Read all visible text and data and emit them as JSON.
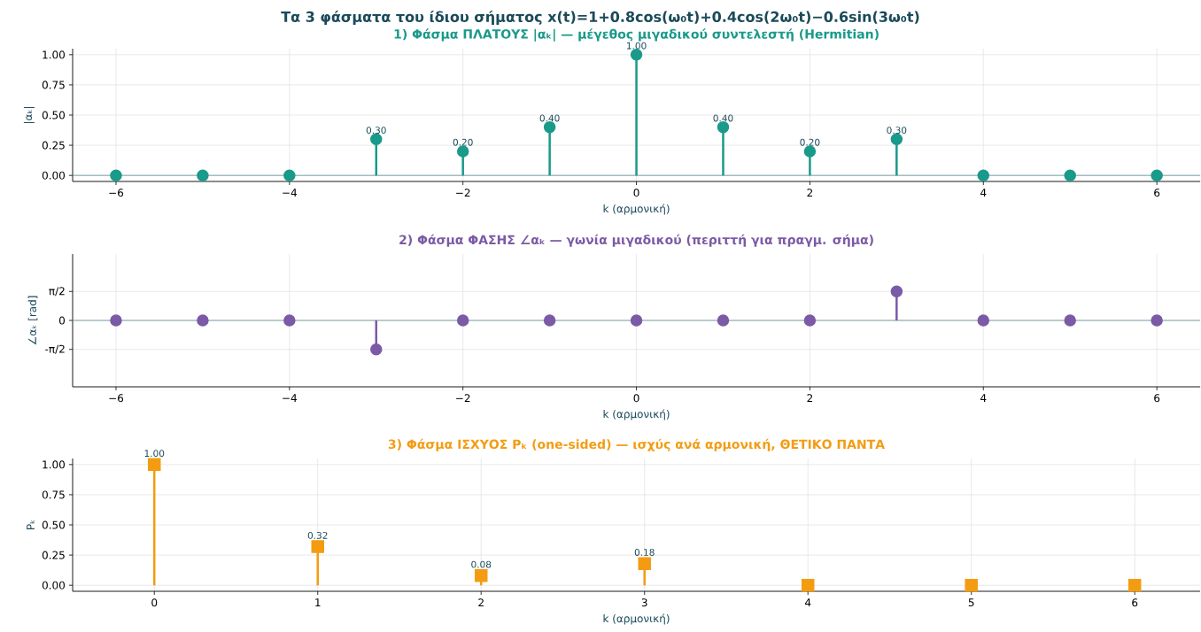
{
  "chart_data": [
    {
      "type": "lollipop",
      "title": "Τα 3 φάσματα του ίδιου σήματος x(t)=1+0.8cos(ω₀t)+0.4cos(2ω₀t)−0.6sin(3ω₀t)",
      "subtitle": "1) Φάσμα ΠΛΑΤΟΥΣ |αₖ| — μέγεθος μιγαδικού συντελεστή (Hermitian)",
      "xlabel": "k (αρμονική)",
      "ylabel": "|αₖ|",
      "x": [
        -6,
        -5,
        -4,
        -3,
        -2,
        -1,
        0,
        1,
        2,
        3,
        4,
        5,
        6
      ],
      "values": [
        0,
        0,
        0,
        0.3,
        0.2,
        0.4,
        1.0,
        0.4,
        0.2,
        0.3,
        0,
        0,
        0
      ],
      "value_labels": [
        null,
        null,
        null,
        "0.30",
        "0.20",
        "0.40",
        "1.00",
        "0.40",
        "0.20",
        "0.30",
        null,
        null,
        null
      ],
      "color": "#1a9a8a",
      "marker": "circle",
      "grid": true,
      "xlim": [
        -6.5,
        6.5
      ],
      "xticks": [
        {
          "value": -6,
          "label": "−6"
        },
        {
          "value": -4,
          "label": "−4"
        },
        {
          "value": -2,
          "label": "−2"
        },
        0,
        2,
        4,
        6
      ],
      "ylim": [
        -0.05,
        1.05
      ],
      "yticks": [
        {
          "value": 0,
          "label": "0.00"
        },
        {
          "value": 0.25,
          "label": "0.25"
        },
        {
          "value": 0.5,
          "label": "0.50"
        },
        {
          "value": 0.75,
          "label": "0.75"
        },
        {
          "value": 1,
          "label": "1.00"
        }
      ],
      "ref_lines": [
        {
          "axis": "y",
          "value": 0,
          "color": "#7fa3a8"
        }
      ]
    },
    {
      "type": "lollipop",
      "title": "2) Φάσμα ΦΑΣΗΣ ∠αₖ — γωνία μιγαδικού (περιττή για πραγμ. σήμα)",
      "xlabel": "k (αρμονική)",
      "ylabel": "∠αₖ [rad]",
      "x": [
        -6,
        -5,
        -4,
        -3,
        -2,
        -1,
        0,
        1,
        2,
        3,
        4,
        5,
        6
      ],
      "values": [
        0,
        0,
        0,
        -1.57,
        0,
        0,
        0,
        0,
        0,
        1.57,
        0,
        0,
        0
      ],
      "color": "#7b5aa6",
      "marker": "circle",
      "grid": true,
      "xlim": [
        -6.5,
        6.5
      ],
      "xticks": [
        {
          "value": -6,
          "label": "−6"
        },
        {
          "value": -4,
          "label": "−4"
        },
        {
          "value": -2,
          "label": "−2"
        },
        0,
        2,
        4,
        6
      ],
      "ylim": [
        -3.6,
        3.6
      ],
      "yticks": [
        {
          "value": -1.5708,
          "label": "-π/2"
        },
        0,
        {
          "value": 1.5708,
          "label": "π/2"
        }
      ],
      "ref_lines": [
        {
          "axis": "y",
          "value": 0,
          "color": "#7fa3a8"
        }
      ]
    },
    {
      "type": "lollipop",
      "title": "3) Φάσμα ΙΣΧΥΟΣ Pₖ (one-sided) — ισχύς ανά αρμονική, ΘΕΤΙΚΟ ΠΑΝΤΑ",
      "xlabel": "k (αρμονική)",
      "ylabel": "Pₖ",
      "x": [
        0,
        1,
        2,
        3,
        4,
        5,
        6
      ],
      "values": [
        1.0,
        0.32,
        0.08,
        0.18,
        0,
        0,
        0
      ],
      "value_labels": [
        "1.00",
        "0.32",
        "0.08",
        "0.18",
        null,
        null,
        null
      ],
      "color": "#f39c12",
      "marker": "square",
      "grid": true,
      "xlim": [
        -0.5,
        6.4
      ],
      "xticks": [
        0,
        1,
        2,
        3,
        4,
        5,
        6
      ],
      "ylim": [
        -0.05,
        1.05
      ],
      "yticks": [
        {
          "value": 0,
          "label": "0.00"
        },
        {
          "value": 0.25,
          "label": "0.25"
        },
        {
          "value": 0.5,
          "label": "0.50"
        },
        {
          "value": 0.75,
          "label": "0.75"
        },
        {
          "value": 1,
          "label": "1.00"
        }
      ]
    }
  ]
}
